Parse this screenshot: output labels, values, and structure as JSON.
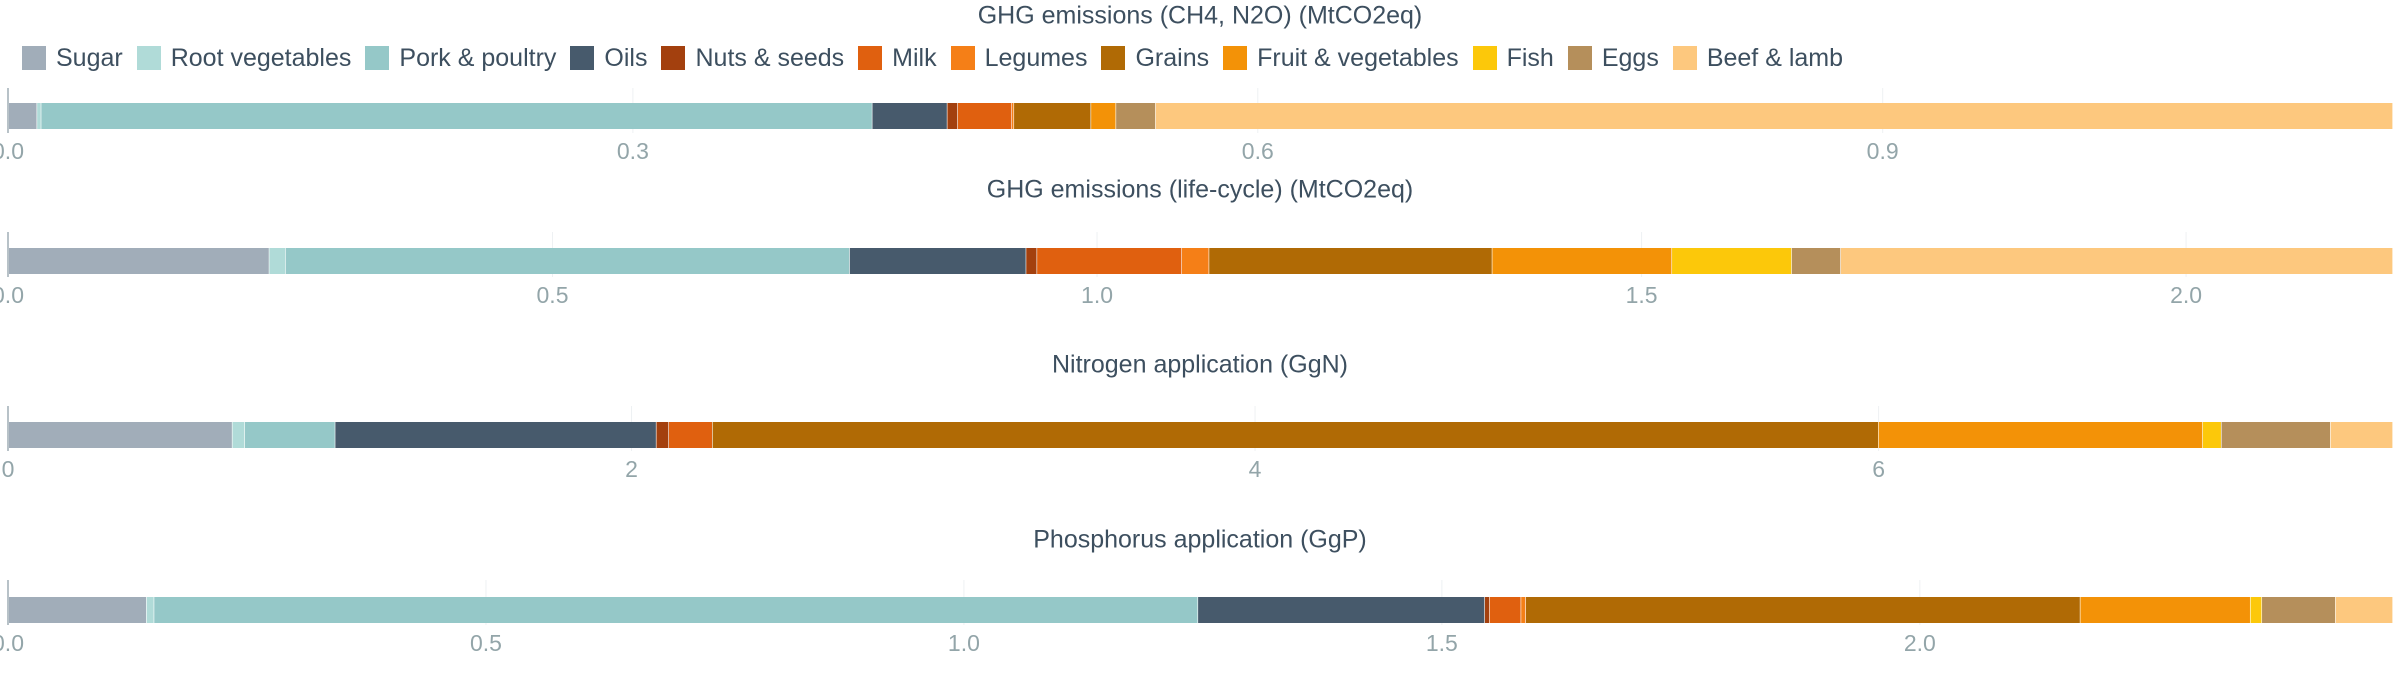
{
  "legend": [
    {
      "name": "Sugar",
      "color": "#a1adb9"
    },
    {
      "name": "Root vegetables",
      "color": "#b0dbd8"
    },
    {
      "name": "Pork & poultry",
      "color": "#95c8c8"
    },
    {
      "name": "Oils",
      "color": "#475a6c"
    },
    {
      "name": "Nuts & seeds",
      "color": "#a3400e"
    },
    {
      "name": "Milk",
      "color": "#e0600f"
    },
    {
      "name": "Legumes",
      "color": "#f57f17"
    },
    {
      "name": "Grains",
      "color": "#b06a05"
    },
    {
      "name": "Fruit & vegetables",
      "color": "#f39207"
    },
    {
      "name": "Fish",
      "color": "#fcc80a"
    },
    {
      "name": "Eggs",
      "color": "#b58f5b"
    },
    {
      "name": "Beef & lamb",
      "color": "#fdc87e"
    }
  ],
  "chart_data": [
    {
      "type": "bar",
      "orientation": "horizontal",
      "stacked": true,
      "title": "GHG emissions (CH4, N2O) (MtCO2eq)",
      "xlim": [
        0,
        1.145
      ],
      "ticks": [
        0,
        0.3,
        0.6,
        0.9
      ],
      "tick_labels": [
        "0.0",
        "0.3",
        "0.6",
        "0.9"
      ],
      "grid": true,
      "series": [
        {
          "name": "Sugar",
          "value": 0.014
        },
        {
          "name": "Root vegetables",
          "value": 0.002
        },
        {
          "name": "Pork & poultry",
          "value": 0.399
        },
        {
          "name": "Oils",
          "value": 0.036
        },
        {
          "name": "Nuts & seeds",
          "value": 0.005
        },
        {
          "name": "Milk",
          "value": 0.026
        },
        {
          "name": "Legumes",
          "value": 0.001
        },
        {
          "name": "Grains",
          "value": 0.037
        },
        {
          "name": "Fruit & vegetables",
          "value": 0.012
        },
        {
          "name": "Fish",
          "value": 0.0
        },
        {
          "name": "Eggs",
          "value": 0.019
        },
        {
          "name": "Beef & lamb",
          "value": 0.594
        }
      ]
    },
    {
      "type": "bar",
      "orientation": "horizontal",
      "stacked": true,
      "title": "GHG emissions (life-cycle) (MtCO2eq)",
      "xlim": [
        0,
        2.19
      ],
      "ticks": [
        0,
        0.5,
        1.0,
        1.5,
        2.0
      ],
      "tick_labels": [
        "0.0",
        "0.5",
        "1.0",
        "1.5",
        "2.0"
      ],
      "grid": true,
      "series": [
        {
          "name": "Sugar",
          "value": 0.24
        },
        {
          "name": "Root vegetables",
          "value": 0.015
        },
        {
          "name": "Pork & poultry",
          "value": 0.518
        },
        {
          "name": "Oils",
          "value": 0.162
        },
        {
          "name": "Nuts & seeds",
          "value": 0.01
        },
        {
          "name": "Milk",
          "value": 0.133
        },
        {
          "name": "Legumes",
          "value": 0.025
        },
        {
          "name": "Grains",
          "value": 0.26
        },
        {
          "name": "Fruit & vegetables",
          "value": 0.165
        },
        {
          "name": "Fish",
          "value": 0.11
        },
        {
          "name": "Eggs",
          "value": 0.045
        },
        {
          "name": "Beef & lamb",
          "value": 0.507
        }
      ]
    },
    {
      "type": "bar",
      "orientation": "horizontal",
      "stacked": true,
      "title": "Nitrogen application (GgN)",
      "xlim": [
        0,
        7.65
      ],
      "ticks": [
        0,
        2,
        4,
        6
      ],
      "tick_labels": [
        "0",
        "2",
        "4",
        "6"
      ],
      "grid": true,
      "series": [
        {
          "name": "Sugar",
          "value": 0.72
        },
        {
          "name": "Root vegetables",
          "value": 0.04
        },
        {
          "name": "Pork & poultry",
          "value": 0.29
        },
        {
          "name": "Oils",
          "value": 1.03
        },
        {
          "name": "Nuts & seeds",
          "value": 0.04
        },
        {
          "name": "Milk",
          "value": 0.14
        },
        {
          "name": "Legumes",
          "value": 0.0
        },
        {
          "name": "Grains",
          "value": 3.74
        },
        {
          "name": "Fruit & vegetables",
          "value": 1.04
        },
        {
          "name": "Fish",
          "value": 0.06
        },
        {
          "name": "Eggs",
          "value": 0.35
        },
        {
          "name": "Beef & lamb",
          "value": 0.2
        }
      ]
    },
    {
      "type": "bar",
      "orientation": "horizontal",
      "stacked": true,
      "title": "Phosphorus application (GgP)",
      "xlim": [
        0,
        2.495
      ],
      "ticks": [
        0,
        0.5,
        1.0,
        1.5,
        2.0
      ],
      "tick_labels": [
        "0.0",
        "0.5",
        "1.0",
        "1.5",
        "2.0"
      ],
      "grid": true,
      "series": [
        {
          "name": "Sugar",
          "value": 0.145
        },
        {
          "name": "Root vegetables",
          "value": 0.008
        },
        {
          "name": "Pork & poultry",
          "value": 1.092
        },
        {
          "name": "Oils",
          "value": 0.3
        },
        {
          "name": "Nuts & seeds",
          "value": 0.005
        },
        {
          "name": "Milk",
          "value": 0.033
        },
        {
          "name": "Legumes",
          "value": 0.005
        },
        {
          "name": "Grains",
          "value": 0.58
        },
        {
          "name": "Fruit & vegetables",
          "value": 0.178
        },
        {
          "name": "Fish",
          "value": 0.012
        },
        {
          "name": "Eggs",
          "value": 0.077
        },
        {
          "name": "Beef & lamb",
          "value": 0.06
        }
      ]
    }
  ]
}
